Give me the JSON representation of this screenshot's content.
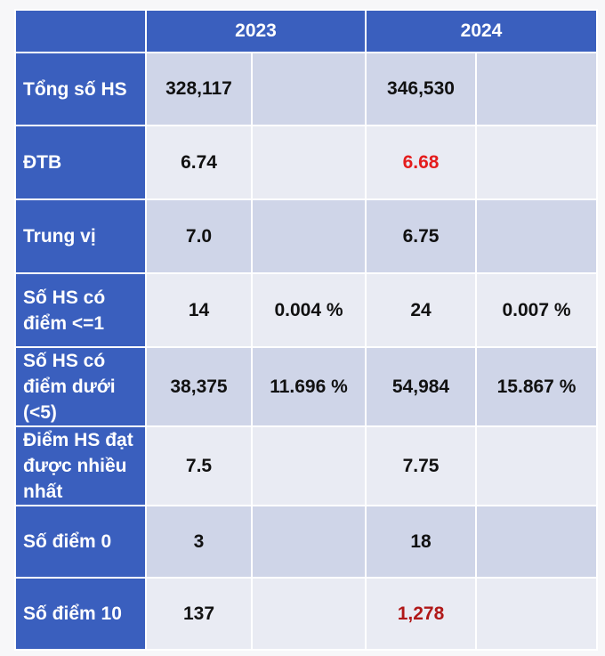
{
  "headers": {
    "y2023": "2023",
    "y2024": "2024"
  },
  "rows": [
    {
      "label": "Tổng số HS",
      "v2023": "328,117",
      "p2023": "",
      "v2024": "346,530",
      "p2024": ""
    },
    {
      "label": "ĐTB",
      "v2023": "6.74",
      "p2023": "",
      "v2024": "6.68",
      "p2024": ""
    },
    {
      "label": "Trung vị",
      "v2023": "7.0",
      "p2023": "",
      "v2024": "6.75",
      "p2024": ""
    },
    {
      "label": "Số HS có điểm <=1",
      "v2023": "14",
      "p2023": "0.004 %",
      "v2024": "24",
      "p2024": "0.007 %"
    },
    {
      "label": "Số HS có điểm dưới (<5)",
      "v2023": "38,375",
      "p2023": "11.696 %",
      "v2024": "54,984",
      "p2024": "15.867 %"
    },
    {
      "label": "Điểm HS đạt được nhiều nhất",
      "v2023": "7.5",
      "p2023": "",
      "v2024": "7.75",
      "p2024": ""
    },
    {
      "label": "Số điểm 0",
      "v2023": "3",
      "p2023": "",
      "v2024": "18",
      "p2024": ""
    },
    {
      "label": "Số điểm 10",
      "v2023": "137",
      "p2023": "",
      "v2024": "1,278",
      "p2024": ""
    }
  ],
  "colors": {
    "header_bg": "#3a5fbe",
    "highlight_red": "#e41c1c",
    "highlight_dark_red": "#b01818",
    "cell_dark": "#cfd5e8",
    "cell_light": "#e9ebf3"
  }
}
